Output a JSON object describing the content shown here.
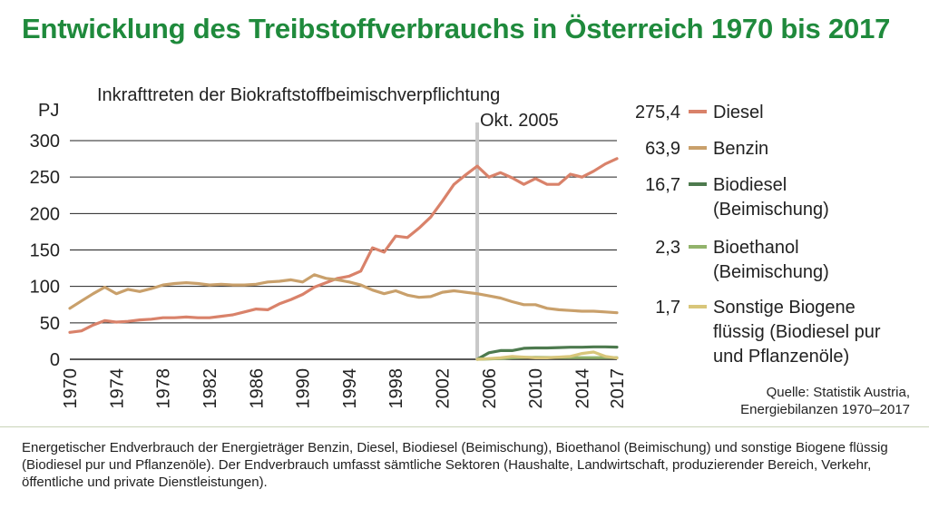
{
  "title": "Entwicklung des Treibstoffverbrauchs in Österreich 1970 bis 2017",
  "footnote": "Energetischer Endverbrauch der Energieträger Benzin, Diesel, Biodiesel (Beimischung), Bioethanol (Beimischung) und sonstige Biogene flüssig (Biodiesel pur und Pflanzenöle). Der Endverbrauch umfasst sämtliche Sektoren (Haushalte, Landwirtschaft, produzierender Bereich, Verkehr, öffentliche und private Dienstleistungen).",
  "source": [
    "Quelle: Statistik Austria,",
    "Energiebilanzen 1970–2017"
  ],
  "colors": {
    "title": "#1f8a3c",
    "grid": "#222222",
    "marker": "#c8c8c8"
  },
  "chart_data": {
    "type": "line",
    "ylabel": "PJ",
    "ylim": [
      0,
      300
    ],
    "xlim": [
      1970,
      2017
    ],
    "yticks": [
      0,
      50,
      100,
      150,
      200,
      250,
      300
    ],
    "xticks": [
      1970,
      1974,
      1978,
      1982,
      1986,
      1990,
      1994,
      1998,
      2002,
      2006,
      2010,
      2014,
      2017
    ],
    "grid": true,
    "legend_position": "right",
    "annotation": {
      "x": 2005,
      "line1": "Inkrafttreten der Biokraftstoffbeimischverpflichtung",
      "line2": "Okt. 2005"
    },
    "series": [
      {
        "name": "Diesel",
        "value_label": "275,4",
        "legend_lines": [
          "Diesel"
        ],
        "color": "#d9826a",
        "x": [
          1970,
          1971,
          1972,
          1973,
          1974,
          1975,
          1976,
          1977,
          1978,
          1979,
          1980,
          1981,
          1982,
          1983,
          1984,
          1985,
          1986,
          1987,
          1988,
          1989,
          1990,
          1991,
          1992,
          1993,
          1994,
          1995,
          1996,
          1997,
          1998,
          1999,
          2000,
          2001,
          2002,
          2003,
          2004,
          2005,
          2006,
          2007,
          2008,
          2009,
          2010,
          2011,
          2012,
          2013,
          2014,
          2015,
          2016,
          2017
        ],
        "y": [
          37,
          39,
          47,
          53,
          51,
          52,
          54,
          55,
          57,
          57,
          58,
          57,
          57,
          59,
          61,
          65,
          69,
          68,
          76,
          82,
          89,
          99,
          105,
          111,
          114,
          121,
          153,
          147,
          169,
          167,
          180,
          195,
          217,
          240,
          253,
          265,
          250,
          256,
          249,
          240,
          248,
          240,
          240,
          254,
          250,
          258,
          268,
          275.4
        ]
      },
      {
        "name": "Benzin",
        "value_label": "63,9",
        "legend_lines": [
          "Benzin"
        ],
        "color": "#c9a06b",
        "x": [
          1970,
          1971,
          1972,
          1973,
          1974,
          1975,
          1976,
          1977,
          1978,
          1979,
          1980,
          1981,
          1982,
          1983,
          1984,
          1985,
          1986,
          1987,
          1988,
          1989,
          1990,
          1991,
          1992,
          1993,
          1994,
          1995,
          1996,
          1997,
          1998,
          1999,
          2000,
          2001,
          2002,
          2003,
          2004,
          2005,
          2006,
          2007,
          2008,
          2009,
          2010,
          2011,
          2012,
          2013,
          2014,
          2015,
          2016,
          2017
        ],
        "y": [
          70,
          80,
          90,
          99,
          90,
          96,
          93,
          97,
          102,
          104,
          105,
          104,
          102,
          103,
          102,
          102,
          103,
          106,
          107,
          109,
          106,
          116,
          111,
          109,
          106,
          102,
          95,
          90,
          94,
          88,
          85,
          86,
          92,
          94,
          92,
          90,
          87,
          84,
          79,
          75,
          75,
          70,
          68,
          67,
          66,
          66,
          65,
          63.9
        ]
      },
      {
        "name": "Biodiesel (Beimischung)",
        "value_label": "16,7",
        "legend_lines": [
          "Biodiesel",
          "(Beimischung)"
        ],
        "color": "#4d7a4e",
        "x": [
          2005,
          2006,
          2007,
          2008,
          2009,
          2010,
          2011,
          2012,
          2013,
          2014,
          2015,
          2016,
          2017
        ],
        "y": [
          0,
          9,
          12,
          12,
          15,
          15.5,
          15.5,
          16,
          16.5,
          16.5,
          17,
          17,
          16.7
        ]
      },
      {
        "name": "Bioethanol (Beimischung)",
        "value_label": "2,3",
        "legend_lines": [
          "Bioethanol",
          "(Beimischung)"
        ],
        "color": "#92b36b",
        "x": [
          2005,
          2006,
          2007,
          2008,
          2009,
          2010,
          2011,
          2012,
          2013,
          2014,
          2015,
          2016,
          2017
        ],
        "y": [
          0,
          0.5,
          1,
          2,
          2.5,
          2.8,
          2.5,
          2.5,
          2.3,
          2.3,
          2.3,
          2.4,
          2.3
        ]
      },
      {
        "name": "Sonstige Biogene flüssig (Biodiesel pur und Pflanzenöle)",
        "value_label": "1,7",
        "legend_lines": [
          "Sonstige Biogene",
          "flüssig (Biodiesel pur",
          "und Pflanzenöle)"
        ],
        "color": "#d8c67a",
        "x": [
          2005,
          2006,
          2007,
          2008,
          2009,
          2010,
          2011,
          2012,
          2013,
          2014,
          2015,
          2016,
          2017
        ],
        "y": [
          0,
          1,
          2,
          4,
          3,
          2,
          2,
          3,
          4,
          8,
          10,
          4,
          1.7
        ]
      }
    ]
  }
}
